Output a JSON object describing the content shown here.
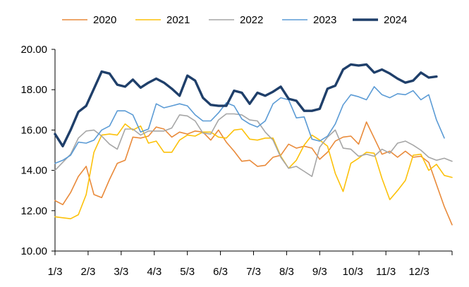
{
  "chart_data": {
    "type": "line",
    "title": "",
    "xlabel": "",
    "ylabel": "",
    "x_ticks": [
      "1/3",
      "2/3",
      "3/3",
      "4/3",
      "5/3",
      "6/3",
      "7/3",
      "8/3",
      "9/3",
      "10/3",
      "11/3",
      "12/3"
    ],
    "y_ticks": [
      "10.00",
      "12.00",
      "14.00",
      "16.00",
      "18.00",
      "20.00"
    ],
    "ylim": [
      10,
      20
    ],
    "grid": false,
    "legend_position": "top",
    "series": [
      {
        "name": "2020",
        "color": "#E98A3A",
        "width": 1.6,
        "values": [
          12.5,
          12.3,
          12.9,
          13.7,
          14.2,
          12.8,
          12.65,
          13.55,
          14.35,
          14.5,
          15.65,
          15.6,
          15.7,
          16.15,
          16.05,
          15.65,
          15.9,
          15.8,
          15.95,
          15.9,
          15.5,
          16.0,
          15.4,
          14.95,
          14.45,
          14.5,
          14.2,
          14.25,
          14.65,
          14.75,
          15.3,
          15.1,
          15.2,
          15.1,
          14.55,
          14.9,
          15.45,
          15.65,
          15.7,
          15.3,
          16.4,
          15.6,
          14.8,
          14.95,
          14.65,
          14.95,
          14.65,
          14.7,
          14.4,
          13.3,
          12.2,
          11.3
        ]
      },
      {
        "name": "2021",
        "color": "#FCC10A",
        "width": 1.6,
        "values": [
          11.7,
          11.65,
          11.6,
          11.8,
          12.8,
          14.9,
          15.75,
          15.8,
          15.75,
          16.3,
          16.0,
          16.2,
          15.35,
          15.45,
          14.9,
          14.9,
          15.5,
          15.75,
          15.7,
          15.9,
          15.9,
          15.65,
          15.6,
          16.0,
          16.05,
          15.55,
          15.5,
          15.6,
          15.6,
          14.7,
          14.1,
          14.5,
          15.25,
          15.75,
          15.5,
          15.2,
          13.85,
          12.95,
          14.35,
          14.6,
          14.9,
          14.85,
          13.6,
          12.55,
          13.0,
          13.5,
          14.75,
          14.8,
          14.0,
          14.3,
          13.75,
          13.65
        ]
      },
      {
        "name": "2022",
        "color": "#A6A6A6",
        "width": 1.6,
        "values": [
          14.0,
          14.4,
          14.8,
          15.6,
          15.95,
          16.0,
          15.7,
          15.3,
          15.05,
          16.05,
          16.05,
          15.75,
          15.95,
          15.95,
          15.95,
          16.1,
          16.75,
          16.7,
          16.45,
          15.85,
          15.8,
          16.5,
          16.8,
          16.8,
          16.75,
          16.5,
          16.45,
          15.9,
          15.5,
          14.65,
          14.1,
          14.2,
          13.95,
          13.7,
          15.15,
          15.65,
          16.0,
          15.1,
          15.05,
          14.7,
          14.8,
          14.7,
          15.05,
          14.85,
          15.35,
          15.45,
          15.25,
          15.0,
          14.65,
          14.5,
          14.6,
          14.45
        ]
      },
      {
        "name": "2023",
        "color": "#5B9BD5",
        "width": 1.6,
        "values": [
          14.35,
          14.5,
          14.75,
          15.4,
          15.35,
          15.5,
          16.0,
          16.2,
          16.95,
          16.95,
          16.75,
          15.9,
          16.05,
          17.3,
          17.1,
          17.2,
          17.3,
          17.2,
          16.75,
          16.45,
          16.45,
          16.85,
          17.35,
          17.2,
          16.55,
          16.3,
          16.15,
          16.45,
          17.3,
          17.6,
          17.5,
          16.6,
          16.65,
          15.55,
          15.45,
          15.7,
          16.3,
          17.25,
          17.75,
          17.65,
          17.5,
          18.15,
          17.75,
          17.6,
          17.8,
          17.75,
          17.95,
          17.5,
          17.75,
          16.5,
          15.6
        ]
      },
      {
        "name": "2024",
        "color": "#1F3F6A",
        "width": 3.4,
        "values": [
          15.8,
          15.2,
          16.0,
          16.9,
          17.2,
          18.05,
          18.9,
          18.8,
          18.25,
          18.15,
          18.5,
          18.1,
          18.35,
          18.55,
          18.35,
          18.05,
          17.7,
          18.7,
          18.45,
          17.6,
          17.25,
          17.2,
          17.2,
          17.95,
          17.85,
          17.3,
          17.85,
          17.7,
          17.9,
          18.15,
          17.55,
          17.45,
          16.95,
          16.95,
          17.05,
          18.05,
          18.2,
          19.0,
          19.25,
          19.2,
          19.25,
          18.85,
          19.0,
          18.8,
          18.55,
          18.35,
          18.45,
          18.85,
          18.6,
          18.65
        ]
      }
    ]
  }
}
